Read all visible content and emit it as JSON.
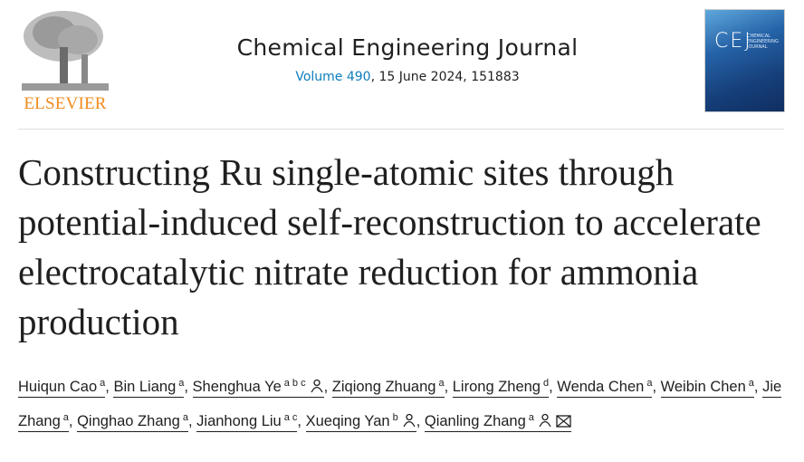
{
  "publisher": {
    "name": "ELSEVIER"
  },
  "journal": {
    "title": "Chemical Engineering Journal",
    "volume_link": "Volume 490",
    "issue_info": ", 15 June 2024, 151883"
  },
  "cover": {
    "abbrev": "CEJ",
    "subtitle": "CHEMICAL ENGINEERING JOURNAL"
  },
  "article": {
    "title": "Constructing Ru single-atomic sites through potential-induced self-reconstruction to accelerate electrocatalytic nitrate reduction for ammonia production"
  },
  "authors": [
    {
      "name": "Huiqun Cao",
      "aff": "a",
      "icons": []
    },
    {
      "name": "Bin Liang",
      "aff": "a",
      "icons": []
    },
    {
      "name": "Shenghua Ye",
      "aff": "a b c",
      "icons": [
        "person-icon"
      ]
    },
    {
      "name": "Ziqiong Zhuang",
      "aff": "a",
      "icons": []
    },
    {
      "name": "Lirong Zheng",
      "aff": "d",
      "icons": []
    },
    {
      "name": "Wenda Chen",
      "aff": "a",
      "icons": []
    },
    {
      "name": "Weibin Chen",
      "aff": "a",
      "icons": []
    },
    {
      "name": "Jie Zhang",
      "aff": "a",
      "icons": []
    },
    {
      "name": "Qinghao Zhang",
      "aff": "a",
      "icons": []
    },
    {
      "name": "Jianhong Liu",
      "aff": "a c",
      "icons": []
    },
    {
      "name": "Xueqing Yan",
      "aff": "b",
      "icons": [
        "person-icon"
      ]
    },
    {
      "name": "Qianling Zhang",
      "aff": "a",
      "icons": [
        "person-icon",
        "envelope-icon"
      ]
    }
  ],
  "colors": {
    "link": "#0c7dbb",
    "elsevier_orange": "#f08b1d"
  }
}
